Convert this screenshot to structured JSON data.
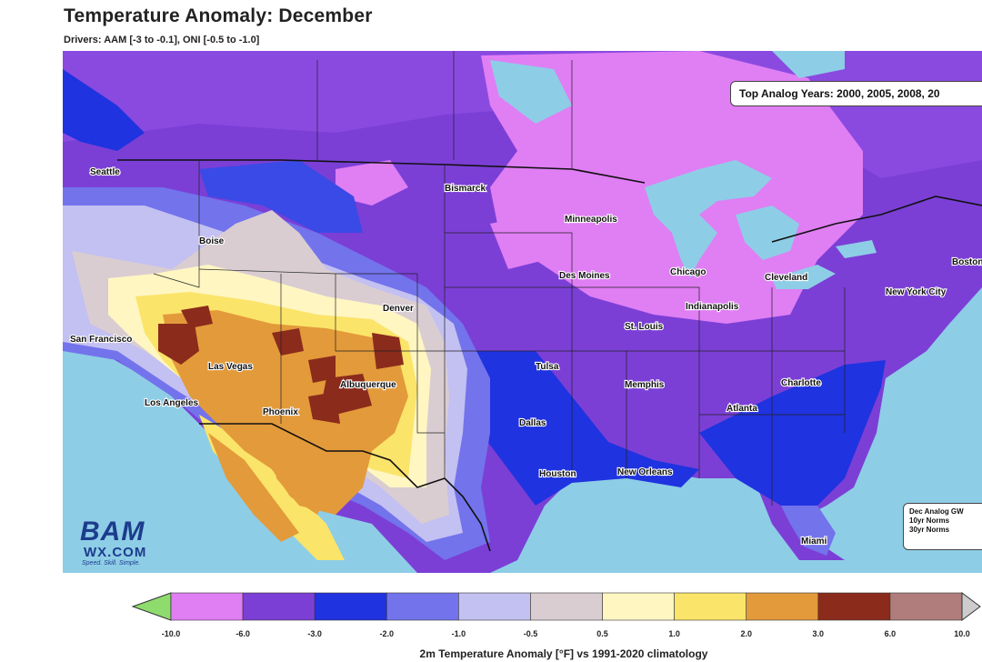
{
  "title": "Temperature Anomaly: December",
  "subtitle": "Drivers: AAM [-3 to -0.1], ONI [-0.5 to -1.0]",
  "analog_box": "Top Analog Years: 2000, 2005, 2008, 20",
  "legend_box": {
    "title": "Dec Analog GW",
    "line1": "10yr Norms",
    "line2": "30yr Norms"
  },
  "logo": {
    "main": "BAM",
    "sub": "WX.COM",
    "tagline": "Speed. Skill. Simple."
  },
  "cities": [
    {
      "name": "Seattle"
    },
    {
      "name": "Boise"
    },
    {
      "name": "Bismarck"
    },
    {
      "name": "Minneapolis"
    },
    {
      "name": "Des Moines"
    },
    {
      "name": "Chicago"
    },
    {
      "name": "Cleveland"
    },
    {
      "name": "New York City"
    },
    {
      "name": "Boston"
    },
    {
      "name": "Indianapolis"
    },
    {
      "name": "St. Louis"
    },
    {
      "name": "Denver"
    },
    {
      "name": "San Francisco"
    },
    {
      "name": "Las Vegas"
    },
    {
      "name": "Los Angeles"
    },
    {
      "name": "Phoenix"
    },
    {
      "name": "Albuquerque"
    },
    {
      "name": "Tulsa"
    },
    {
      "name": "Memphis"
    },
    {
      "name": "Atlanta"
    },
    {
      "name": "Charlotte"
    },
    {
      "name": "Dallas"
    },
    {
      "name": "Houston"
    },
    {
      "name": "New Orleans"
    },
    {
      "name": "Miami"
    }
  ],
  "colorbar": {
    "colors": [
      "#8fdc6e",
      "#e07ef4",
      "#7b3fd6",
      "#1f33e0",
      "#7373ec",
      "#c3c0f2",
      "#d9cdd2",
      "#fff6c2",
      "#fbe46a",
      "#e39a3a",
      "#8b2b1c",
      "#b07c7c",
      "#cccccc"
    ],
    "ticks": [
      "-10.0",
      "-6.0",
      "-3.0",
      "-2.0",
      "-1.0",
      "-0.5",
      "0.5",
      "1.0",
      "2.0",
      "3.0",
      "6.0",
      "10.0"
    ],
    "label": "2m Temperature Anomaly [°F] vs 1991-2020 climatology"
  }
}
